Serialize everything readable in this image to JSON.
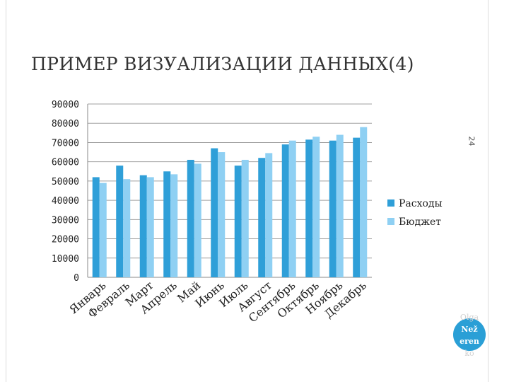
{
  "slide": {
    "title": "ПРИМЕР ВИЗУАЛИЗАЦИИ ДАННЫХ(4)",
    "slide_number": "24",
    "author": [
      "Olga",
      "Než",
      "eren",
      "ko"
    ]
  },
  "colors": {
    "series_1": "#2f9fd8",
    "series_2": "#8fd0f3",
    "badge": "#2a9fd6"
  },
  "chart_data": {
    "type": "bar",
    "title": "",
    "xlabel": "",
    "ylabel": "",
    "ylim": [
      0,
      90000
    ],
    "yticks": [
      0,
      10000,
      20000,
      30000,
      40000,
      50000,
      60000,
      70000,
      80000,
      90000
    ],
    "grid": true,
    "legend_position": "right",
    "categories": [
      "Январь",
      "Февраль",
      "Март",
      "Апрель",
      "Май",
      "Июнь",
      "Июль",
      "Август",
      "Сентябрь",
      "Октябрь",
      "Ноябрь",
      "Декабрь"
    ],
    "series": [
      {
        "name": "Расходы",
        "color": "#2f9fd8",
        "values": [
          52000,
          58000,
          53000,
          55000,
          61000,
          67000,
          58000,
          62000,
          69000,
          71500,
          71000,
          72500
        ]
      },
      {
        "name": "Бюджет",
        "color": "#8fd0f3",
        "values": [
          49000,
          51000,
          52000,
          53500,
          59000,
          65000,
          61000,
          64500,
          71000,
          73000,
          74000,
          78000
        ]
      }
    ]
  }
}
